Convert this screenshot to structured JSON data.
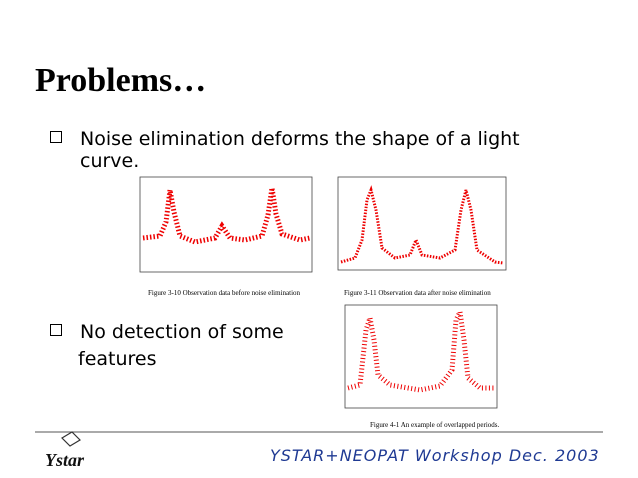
{
  "header": {
    "title": "Problems…"
  },
  "bullets": [
    {
      "lines": [
        "Noise elimination deforms the shape of a light",
        "curve."
      ]
    },
    {
      "lines": [
        "No detection of some",
        "features"
      ]
    }
  ],
  "figures": [
    {
      "caption": "Figure 3-10 Observation data before noise elimination"
    },
    {
      "caption": "Figure 3-11 Observation data after noise elimination"
    },
    {
      "caption": "Figure 4-1 An example of overlapped periods."
    }
  ],
  "footer": {
    "event": "YSTAR+NEOPAT Workshop Dec. 2003",
    "logo": "Ystar"
  }
}
